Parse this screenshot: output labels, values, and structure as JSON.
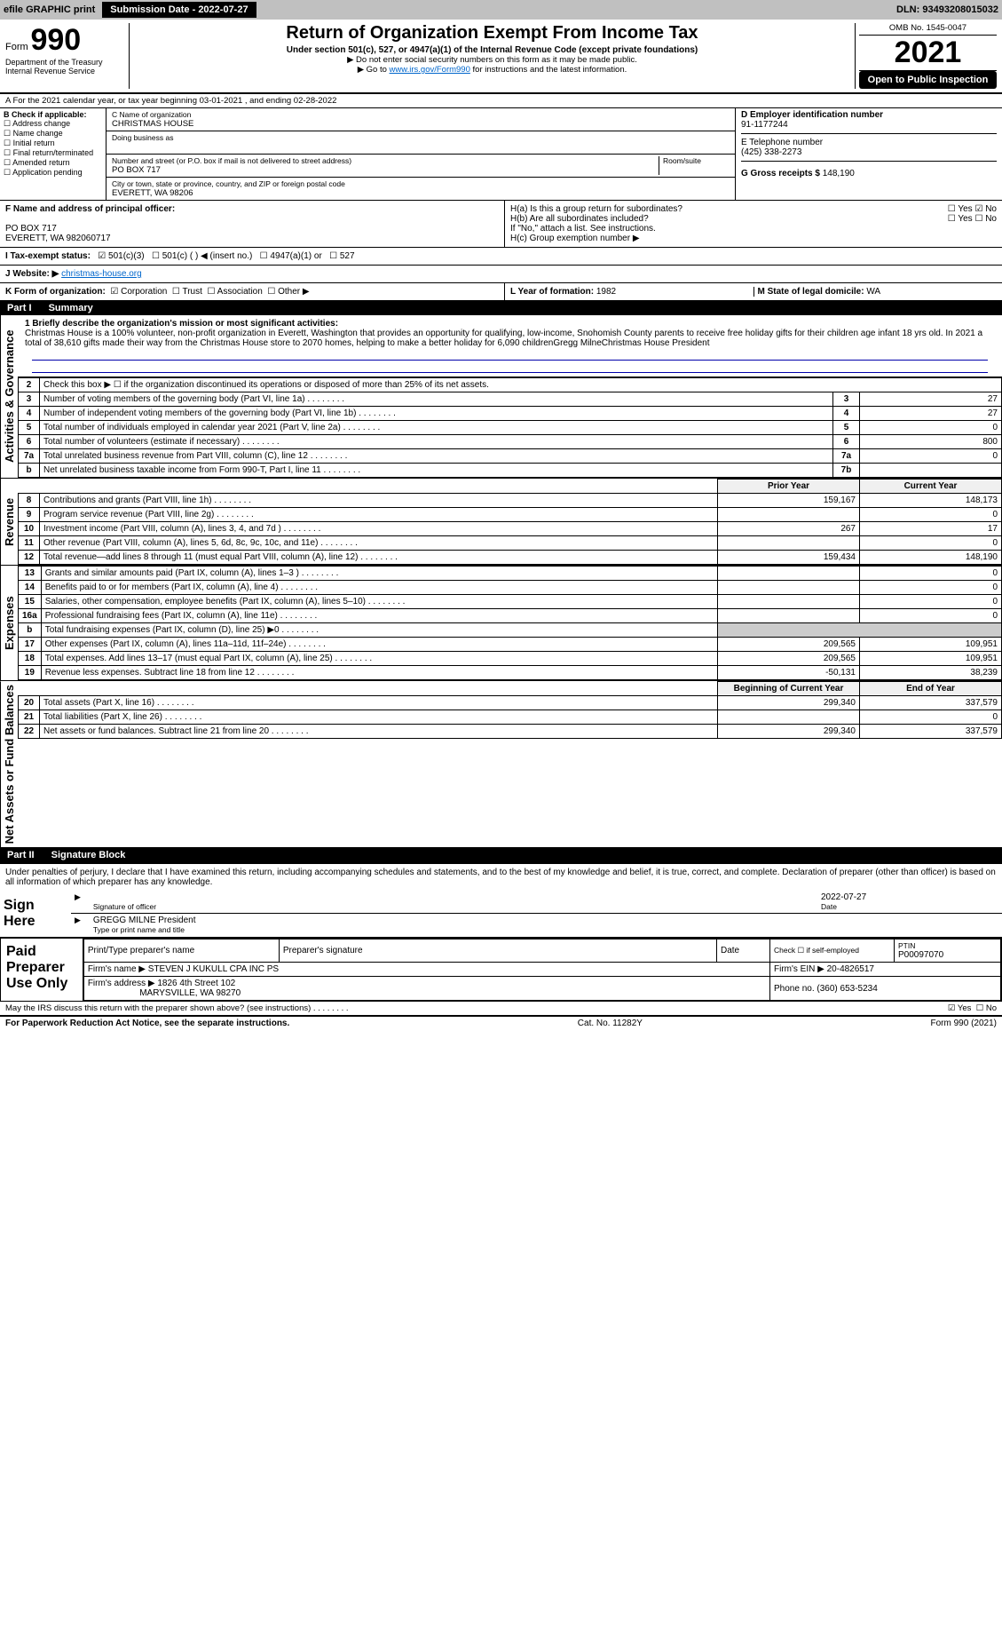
{
  "topbar": {
    "efile": "efile GRAPHIC print",
    "sub_label": "Submission Date - 2022-07-27",
    "dln": "DLN: 93493208015032"
  },
  "header": {
    "form_prefix": "Form",
    "form_no": "990",
    "title": "Return of Organization Exempt From Income Tax",
    "subtitle": "Under section 501(c), 527, or 4947(a)(1) of the Internal Revenue Code (except private foundations)",
    "note1": "▶ Do not enter social security numbers on this form as it may be made public.",
    "note2_pre": "▶ Go to ",
    "note2_link": "www.irs.gov/Form990",
    "note2_post": " for instructions and the latest information.",
    "dept": "Department of the Treasury",
    "irs": "Internal Revenue Service",
    "omb": "OMB No. 1545-0047",
    "year": "2021",
    "open": "Open to Public Inspection"
  },
  "line_a": "A For the 2021 calendar year, or tax year beginning 03-01-2021   , and ending 02-28-2022",
  "box_b": {
    "title": "B Check if applicable:",
    "items": [
      "Address change",
      "Name change",
      "Initial return",
      "Final return/terminated",
      "Amended return",
      "Application pending"
    ]
  },
  "box_c": {
    "label_name": "C Name of organization",
    "name": "CHRISTMAS HOUSE",
    "dba_label": "Doing business as",
    "street_label": "Number and street (or P.O. box if mail is not delivered to street address)",
    "room_label": "Room/suite",
    "street": "PO BOX 717",
    "city_label": "City or town, state or province, country, and ZIP or foreign postal code",
    "city": "EVERETT, WA  98206"
  },
  "box_d": {
    "label": "D Employer identification number",
    "value": "91-1177244",
    "tel_label": "E Telephone number",
    "tel": "(425) 338-2273",
    "gross_label": "G Gross receipts $",
    "gross": "148,190"
  },
  "row_f": {
    "label": "F Name and address of principal officer:",
    "line1": "PO BOX 717",
    "line2": "EVERETT, WA  982060717"
  },
  "row_h": {
    "ha": "H(a)  Is this a group return for subordinates?",
    "hb": "H(b)  Are all subordinates included?",
    "hb_note": "If \"No,\" attach a list. See instructions.",
    "hc": "H(c)  Group exemption number ▶",
    "yes": "Yes",
    "no": "No"
  },
  "row_i": {
    "label": "I  Tax-exempt status:",
    "opt1": "501(c)(3)",
    "opt2": "501(c) (  ) ◀ (insert no.)",
    "opt3": "4947(a)(1) or",
    "opt4": "527"
  },
  "row_j": {
    "label": "J  Website: ▶",
    "value": "christmas-house.org"
  },
  "row_k": {
    "label": "K Form of organization:",
    "corp": "Corporation",
    "trust": "Trust",
    "assoc": "Association",
    "other": "Other ▶"
  },
  "row_l": {
    "label": "L Year of formation:",
    "value": "1982"
  },
  "row_m": {
    "label": "M State of legal domicile:",
    "value": "WA"
  },
  "part1": {
    "label": "Part I",
    "title": "Summary"
  },
  "briefly": {
    "label": "1  Briefly describe the organization's mission or most significant activities:",
    "text": "Christmas House is a 100% volunteer, non-profit organization in Everett, Washington that provides an opportunity for qualifying, low-income, Snohomish County parents to receive free holiday gifts for their children age infant 18 yrs old. In 2021 a total of 38,610 gifts made their way from the Christmas House store to 2070 homes, helping to make a better holiday for 6,090 childrenGregg MilneChristmas House President"
  },
  "gov_lines": [
    {
      "n": "2",
      "d": "Check this box ▶ ☐ if the organization discontinued its operations or disposed of more than 25% of its net assets.",
      "box": "",
      "v": ""
    },
    {
      "n": "3",
      "d": "Number of voting members of the governing body (Part VI, line 1a)",
      "box": "3",
      "v": "27"
    },
    {
      "n": "4",
      "d": "Number of independent voting members of the governing body (Part VI, line 1b)",
      "box": "4",
      "v": "27"
    },
    {
      "n": "5",
      "d": "Total number of individuals employed in calendar year 2021 (Part V, line 2a)",
      "box": "5",
      "v": "0"
    },
    {
      "n": "6",
      "d": "Total number of volunteers (estimate if necessary)",
      "box": "6",
      "v": "800"
    },
    {
      "n": "7a",
      "d": "Total unrelated business revenue from Part VIII, column (C), line 12",
      "box": "7a",
      "v": "0"
    },
    {
      "n": "b",
      "d": "Net unrelated business taxable income from Form 990-T, Part I, line 11",
      "box": "7b",
      "v": ""
    }
  ],
  "col_hdr": {
    "prior": "Prior Year",
    "current": "Current Year"
  },
  "revenue_lines": [
    {
      "n": "8",
      "d": "Contributions and grants (Part VIII, line 1h)",
      "p": "159,167",
      "c": "148,173"
    },
    {
      "n": "9",
      "d": "Program service revenue (Part VIII, line 2g)",
      "p": "",
      "c": "0"
    },
    {
      "n": "10",
      "d": "Investment income (Part VIII, column (A), lines 3, 4, and 7d )",
      "p": "267",
      "c": "17"
    },
    {
      "n": "11",
      "d": "Other revenue (Part VIII, column (A), lines 5, 6d, 8c, 9c, 10c, and 11e)",
      "p": "",
      "c": "0"
    },
    {
      "n": "12",
      "d": "Total revenue—add lines 8 through 11 (must equal Part VIII, column (A), line 12)",
      "p": "159,434",
      "c": "148,190"
    }
  ],
  "expense_lines": [
    {
      "n": "13",
      "d": "Grants and similar amounts paid (Part IX, column (A), lines 1–3 )",
      "p": "",
      "c": "0"
    },
    {
      "n": "14",
      "d": "Benefits paid to or for members (Part IX, column (A), line 4)",
      "p": "",
      "c": "0"
    },
    {
      "n": "15",
      "d": "Salaries, other compensation, employee benefits (Part IX, column (A), lines 5–10)",
      "p": "",
      "c": "0"
    },
    {
      "n": "16a",
      "d": "Professional fundraising fees (Part IX, column (A), line 11e)",
      "p": "",
      "c": "0"
    },
    {
      "n": "b",
      "d": "Total fundraising expenses (Part IX, column (D), line 25) ▶0",
      "p": "—",
      "c": "—"
    },
    {
      "n": "17",
      "d": "Other expenses (Part IX, column (A), lines 11a–11d, 11f–24e)",
      "p": "209,565",
      "c": "109,951"
    },
    {
      "n": "18",
      "d": "Total expenses. Add lines 13–17 (must equal Part IX, column (A), line 25)",
      "p": "209,565",
      "c": "109,951"
    },
    {
      "n": "19",
      "d": "Revenue less expenses. Subtract line 18 from line 12",
      "p": "-50,131",
      "c": "38,239"
    }
  ],
  "net_hdr": {
    "beg": "Beginning of Current Year",
    "end": "End of Year"
  },
  "net_lines": [
    {
      "n": "20",
      "d": "Total assets (Part X, line 16)",
      "p": "299,340",
      "c": "337,579"
    },
    {
      "n": "21",
      "d": "Total liabilities (Part X, line 26)",
      "p": "",
      "c": "0"
    },
    {
      "n": "22",
      "d": "Net assets or fund balances. Subtract line 21 from line 20",
      "p": "299,340",
      "c": "337,579"
    }
  ],
  "part2": {
    "label": "Part II",
    "title": "Signature Block"
  },
  "penalties": "Under penalties of perjury, I declare that I have examined this return, including accompanying schedules and statements, and to the best of my knowledge and belief, it is true, correct, and complete. Declaration of preparer (other than officer) is based on all information of which preparer has any knowledge.",
  "sign": {
    "here": "Sign Here",
    "sig_label": "Signature of officer",
    "date_label": "Date",
    "date": "2022-07-27",
    "name": "GREGG MILNE  President",
    "name_label": "Type or print name and title"
  },
  "paid": {
    "label": "Paid Preparer Use Only",
    "h_print": "Print/Type preparer's name",
    "h_sig": "Preparer's signature",
    "h_date": "Date",
    "h_check": "Check ☐ if self-employed",
    "h_ptin": "PTIN",
    "ptin": "P00097070",
    "firm_label": "Firm's name    ▶",
    "firm": "STEVEN J KUKULL CPA INC PS",
    "ein_label": "Firm's EIN ▶",
    "ein": "20-4826517",
    "addr_label": "Firm's address ▶",
    "addr1": "1826 4th Street 102",
    "addr2": "MARYSVILLE, WA  98270",
    "phone_label": "Phone no.",
    "phone": "(360) 653-5234"
  },
  "discuss": {
    "q": "May the IRS discuss this return with the preparer shown above? (see instructions)",
    "yes": "Yes",
    "no": "No"
  },
  "footer": {
    "left": "For Paperwork Reduction Act Notice, see the separate instructions.",
    "mid": "Cat. No. 11282Y",
    "right": "Form 990 (2021)"
  },
  "vlabels": {
    "gov": "Activities & Governance",
    "rev": "Revenue",
    "exp": "Expenses",
    "net": "Net Assets or Fund Balances"
  }
}
